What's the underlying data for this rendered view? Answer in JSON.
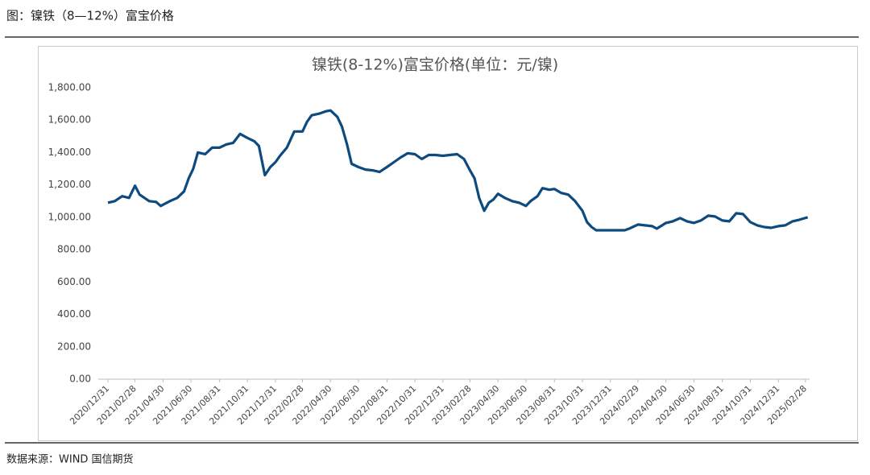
{
  "header": {
    "title": "图：镍铁（8—12%）富宝价格"
  },
  "chart_data": {
    "type": "line",
    "title": "镍铁(8-12%)富宝价格(单位：元/镍)",
    "x": [
      "2020/12/31",
      "2021/01/15",
      "2021/01/31",
      "2021/02/15",
      "2021/02/28",
      "2021/03/10",
      "2021/03/31",
      "2021/04/15",
      "2021/04/25",
      "2021/05/15",
      "2021/05/31",
      "2021/06/15",
      "2021/06/25",
      "2021/07/05",
      "2021/07/15",
      "2021/07/31",
      "2021/08/15",
      "2021/08/31",
      "2021/09/15",
      "2021/09/30",
      "2021/10/15",
      "2021/10/31",
      "2021/11/15",
      "2021/11/25",
      "2021/12/08",
      "2021/12/20",
      "2021/12/31",
      "2022/01/10",
      "2022/01/25",
      "2022/02/10",
      "2022/02/28",
      "2022/03/10",
      "2022/03/20",
      "2022/04/05",
      "2022/04/20",
      "2022/04/30",
      "2022/05/15",
      "2022/05/25",
      "2022/06/05",
      "2022/06/15",
      "2022/06/30",
      "2022/07/15",
      "2022/07/31",
      "2022/08/15",
      "2022/08/31",
      "2022/09/15",
      "2022/09/30",
      "2022/10/15",
      "2022/10/31",
      "2022/11/15",
      "2022/11/30",
      "2022/12/15",
      "2022/12/31",
      "2023/01/15",
      "2023/01/31",
      "2023/02/15",
      "2023/02/28",
      "2023/03/10",
      "2023/03/20",
      "2023/03/31",
      "2023/04/10",
      "2023/04/20",
      "2023/04/30",
      "2023/05/15",
      "2023/05/31",
      "2023/06/15",
      "2023/06/30",
      "2023/07/10",
      "2023/07/25",
      "2023/08/05",
      "2023/08/20",
      "2023/08/31",
      "2023/09/15",
      "2023/09/30",
      "2023/10/15",
      "2023/10/31",
      "2023/11/10",
      "2023/11/20",
      "2023/11/30",
      "2023/12/31",
      "2024/01/31",
      "2024/02/10",
      "2024/02/29",
      "2024/03/15",
      "2024/03/31",
      "2024/04/10",
      "2024/04/30",
      "2024/05/15",
      "2024/05/31",
      "2024/06/15",
      "2024/06/30",
      "2024/07/15",
      "2024/07/31",
      "2024/08/15",
      "2024/08/31",
      "2024/09/15",
      "2024/09/30",
      "2024/10/15",
      "2024/10/31",
      "2024/11/15",
      "2024/11/30",
      "2024/12/15",
      "2024/12/31",
      "2025/01/15",
      "2025/01/31",
      "2025/02/15",
      "2025/03/05"
    ],
    "series": [
      {
        "color": "#0d4a7f",
        "values": [
          1090,
          1100,
          1130,
          1120,
          1195,
          1140,
          1100,
          1095,
          1070,
          1100,
          1120,
          1160,
          1240,
          1300,
          1400,
          1390,
          1430,
          1430,
          1450,
          1460,
          1515,
          1490,
          1470,
          1440,
          1260,
          1310,
          1340,
          1380,
          1430,
          1530,
          1530,
          1590,
          1630,
          1640,
          1655,
          1660,
          1620,
          1560,
          1450,
          1330,
          1310,
          1295,
          1290,
          1280,
          1310,
          1340,
          1370,
          1395,
          1390,
          1360,
          1385,
          1385,
          1380,
          1385,
          1390,
          1360,
          1290,
          1240,
          1120,
          1040,
          1090,
          1110,
          1145,
          1120,
          1100,
          1090,
          1070,
          1100,
          1130,
          1180,
          1170,
          1175,
          1150,
          1140,
          1100,
          1040,
          970,
          940,
          920,
          920,
          920,
          930,
          955,
          950,
          945,
          930,
          965,
          975,
          995,
          975,
          965,
          980,
          1010,
          1005,
          980,
          975,
          1025,
          1020,
          970,
          950,
          940,
          935,
          945,
          950,
          975,
          985,
          1000
        ]
      }
    ],
    "xlim": [
      "2020/12/10",
      "2025/03/09"
    ],
    "xticks": [
      "2020/12/31",
      "2021/02/28",
      "2021/04/30",
      "2021/06/30",
      "2021/08/31",
      "2021/10/31",
      "2021/12/31",
      "2022/02/28",
      "2022/04/30",
      "2022/06/30",
      "2022/08/31",
      "2022/10/31",
      "2022/12/31",
      "2023/02/28",
      "2023/04/30",
      "2023/06/30",
      "2023/08/31",
      "2023/10/31",
      "2023/12/31",
      "2024/02/29",
      "2024/04/30",
      "2024/06/30",
      "2024/08/31",
      "2024/10/31",
      "2024/12/31",
      "2025/02/28"
    ],
    "ylim": [
      0,
      1800
    ],
    "yticks": [
      {
        "value": 0,
        "label": "0.00"
      },
      {
        "value": 200,
        "label": "200.00"
      },
      {
        "value": 400,
        "label": "400.00"
      },
      {
        "value": 600,
        "label": "600.00"
      },
      {
        "value": 800,
        "label": "800.00"
      },
      {
        "value": 1000,
        "label": "1,000.00"
      },
      {
        "value": 1200,
        "label": "1,200.00"
      },
      {
        "value": 1400,
        "label": "1,400.00"
      },
      {
        "value": 1600,
        "label": "1,600.00"
      },
      {
        "value": 1800,
        "label": "1,800.00"
      }
    ],
    "grid": false
  },
  "source": "数据来源：WIND 国信期货"
}
